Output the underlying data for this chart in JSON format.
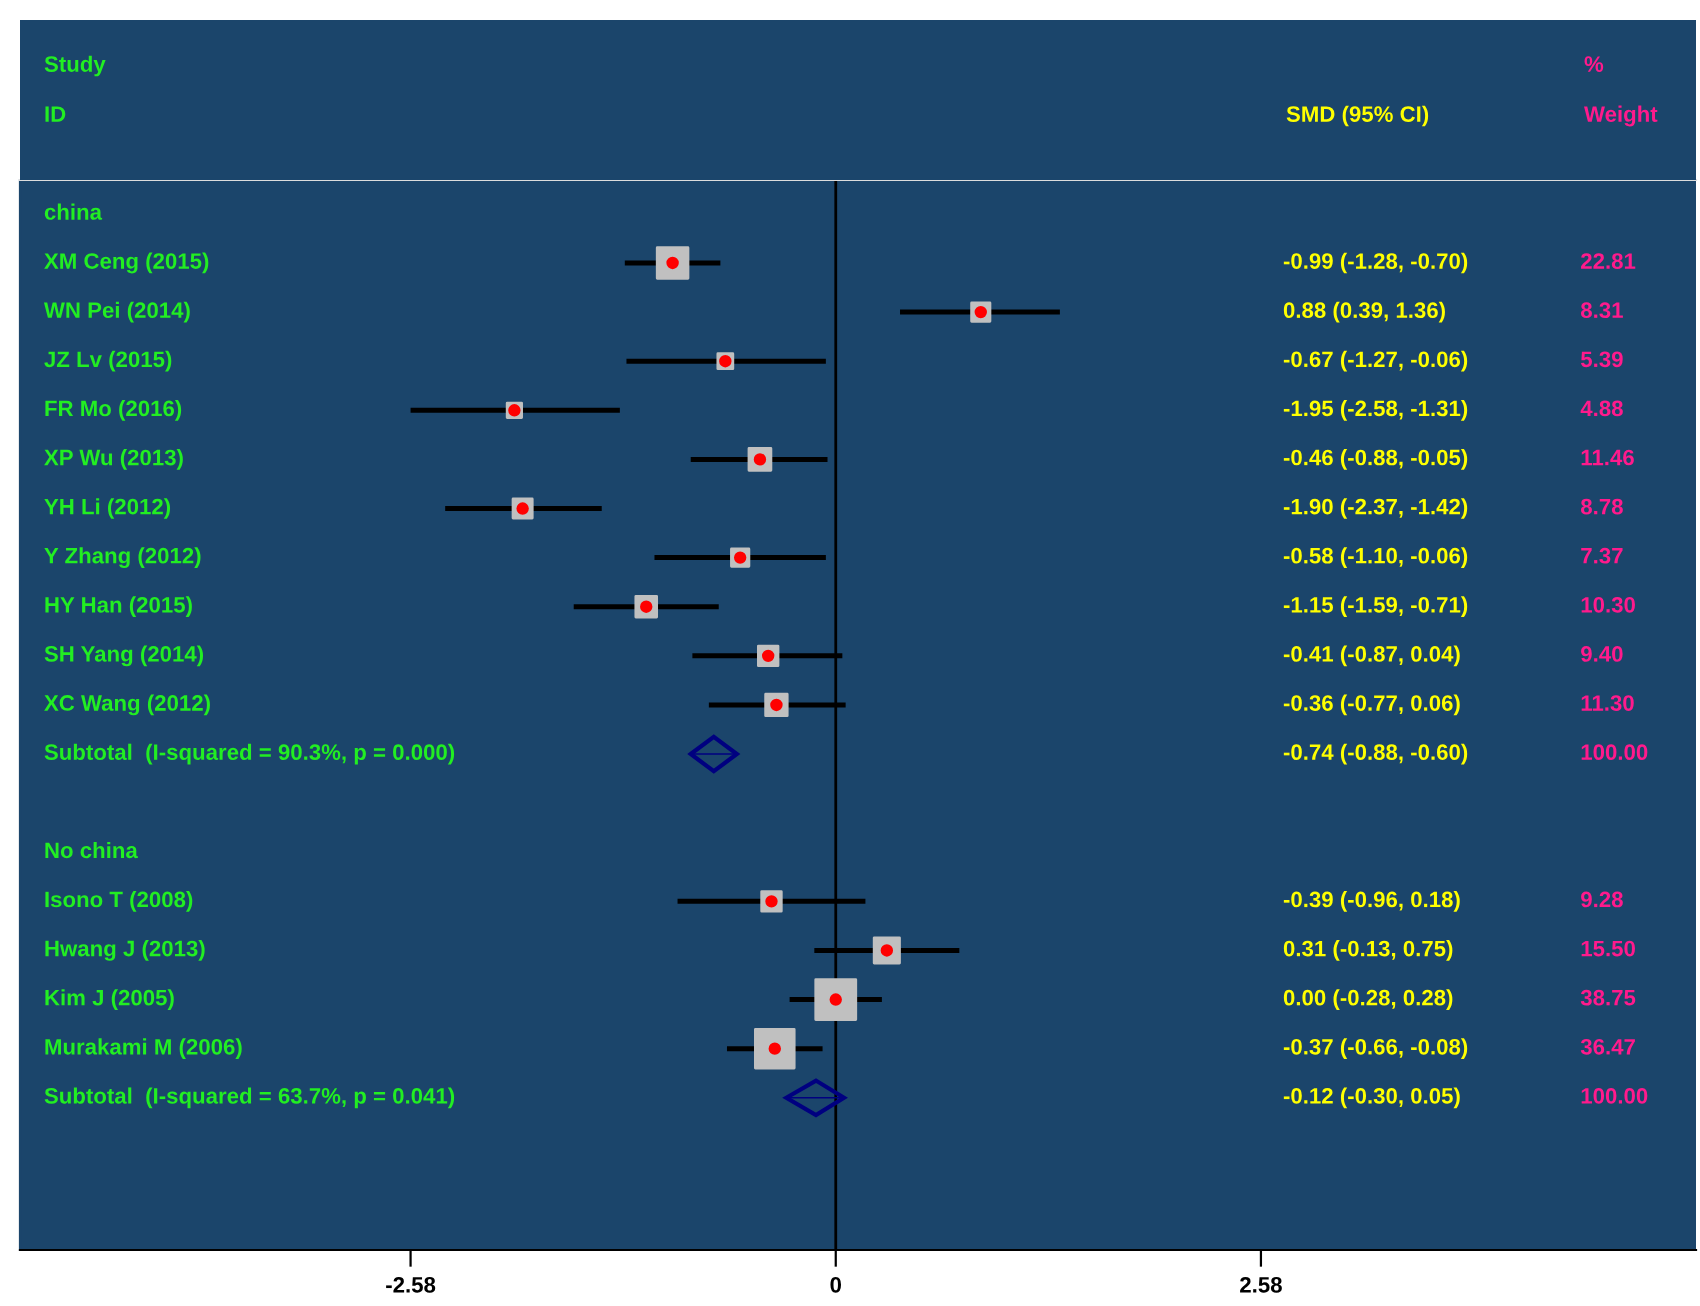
{
  "chart_data": {
    "type": "scatter",
    "orientation": "horizontal",
    "categories": [
      "china",
      "XM Ceng (2015)",
      "WN Pei (2014)",
      "JZ Lv (2015)",
      "FR Mo (2016)",
      "XP Wu (2013)",
      "YH Li (2012)",
      "Y Zhang (2012)",
      "HY Han (2015)",
      "SH Yang (2014)",
      "XC Wang (2012)",
      "Subtotal  (I-squared = 90.3%, p = 0.000)",
      null,
      "No china",
      "Isono T (2008)",
      "Hwang J (2013)",
      "Kim J (2005)",
      "Murakami M (2006)",
      "Subtotal  (I-squared = 63.7%, p = 0.041)"
    ],
    "series": [
      {
        "marker": "square",
        "color": "#c0c0c0",
        "values": [
          null,
          -0.99,
          0.88,
          -0.67,
          -1.95,
          -0.46,
          -1.9,
          -0.58,
          -1.15,
          -0.41,
          -0.36,
          null,
          null,
          null,
          -0.39,
          0.31,
          0.0,
          -0.37,
          null
        ],
        "errors": [
          null,
          [
            -1.28,
            -0.7
          ],
          [
            0.39,
            1.36
          ],
          [
            -1.27,
            -0.06
          ],
          [
            -2.58,
            -1.31
          ],
          [
            -0.88,
            -0.05
          ],
          [
            -2.37,
            -1.42
          ],
          [
            -1.1,
            -0.06
          ],
          [
            -1.59,
            -0.71
          ],
          [
            -0.87,
            0.04
          ],
          [
            -0.77,
            0.06
          ],
          null,
          null,
          null,
          [
            -0.96,
            0.18
          ],
          [
            -0.13,
            0.75
          ],
          [
            -0.28,
            0.28
          ],
          [
            -0.66,
            -0.08
          ],
          null
        ],
        "sizes": [
          null,
          0.59,
          0.21,
          0.14,
          0.13,
          0.3,
          0.23,
          0.19,
          0.27,
          0.24,
          0.29,
          null,
          null,
          null,
          0.24,
          0.4,
          1,
          0.94,
          null
        ]
      },
      {
        "marker": "diamond",
        "color": "#000080",
        "values": [
          null,
          null,
          null,
          null,
          null,
          null,
          null,
          null,
          null,
          null,
          null,
          -0.74,
          null,
          null,
          null,
          null,
          null,
          null,
          -0.12
        ],
        "errors": [
          null,
          null,
          null,
          null,
          null,
          null,
          null,
          null,
          null,
          null,
          null,
          [
            -0.88,
            -0.6
          ],
          null,
          null,
          null,
          null,
          null,
          null,
          [
            -0.3,
            0.05
          ]
        ]
      }
    ],
    "xlim": [
      -4.95,
      5.22
    ],
    "xticks": [
      -2.58,
      0,
      2.58
    ],
    "ref_lines": [
      {
        "axis": "x",
        "value": 0,
        "color": "#000000"
      }
    ],
    "annotations": [
      "Study",
      "ID",
      "SMD (95% CI)",
      "%",
      "Weight",
      "-0.99 (-1.28, -0.70)",
      "22.81",
      "0.88 (0.39, 1.36)",
      "8.31",
      "-0.67 (-1.27, -0.06)",
      "5.39",
      "-1.95 (-2.58, -1.31)",
      "4.88",
      "-0.46 (-0.88, -0.05)",
      "11.46",
      "-1.90 (-2.37, -1.42)",
      "8.78",
      "-0.58 (-1.10, -0.06)",
      "7.37",
      "-1.15 (-1.59, -0.71)",
      "10.30",
      "-0.41 (-0.87, 0.04)",
      "9.40",
      "-0.36 (-0.77, 0.06)",
      "11.30",
      "-0.74 (-0.88, -0.60)",
      "100.00",
      "-0.39 (-0.96, 0.18)",
      "9.28",
      "0.31 (-0.13, 0.75)",
      "15.50",
      "0.00 (-0.28, 0.28)",
      "38.75",
      "-0.37 (-0.66, -0.08)",
      "36.47",
      "-0.12 (-0.30, 0.05)",
      "100.00"
    ],
    "grid": false,
    "legend": false
  }
}
